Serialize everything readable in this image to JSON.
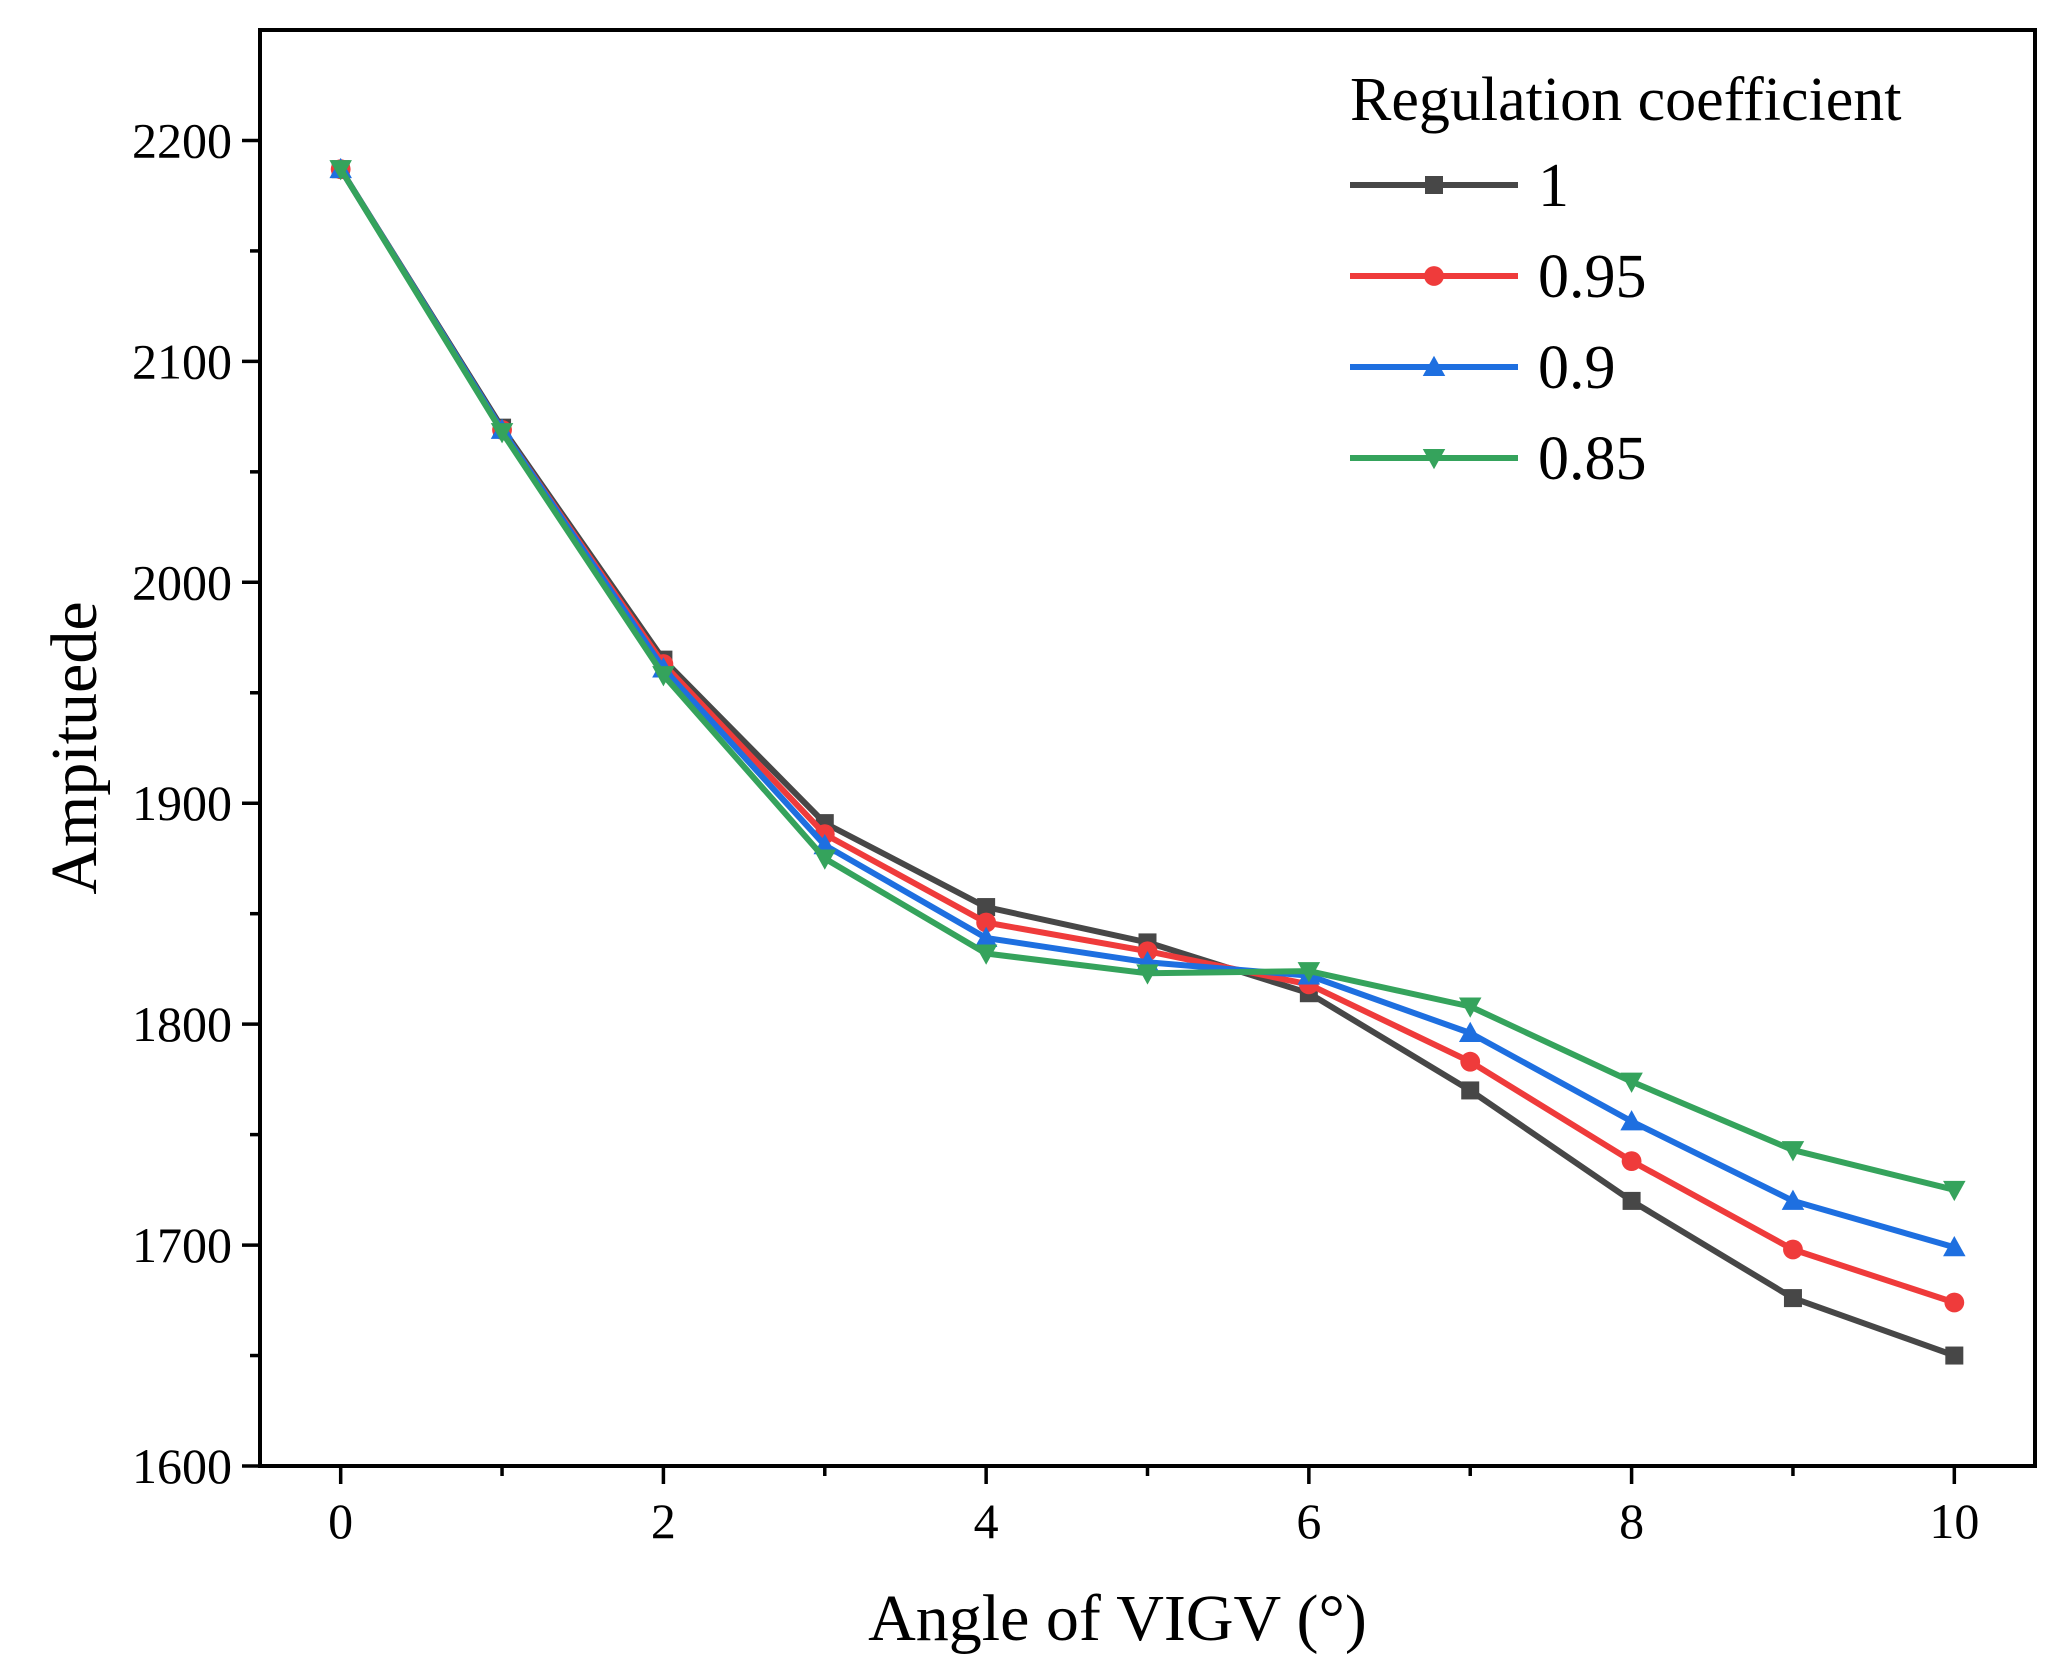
{
  "chart_data": {
    "type": "line",
    "title": "",
    "xlabel": "Angle of VIGV (°)",
    "ylabel": "Ampituede",
    "xlim": [
      -0.5,
      10.5
    ],
    "ylim": [
      1600,
      2250
    ],
    "xticks": [
      0,
      1,
      2,
      3,
      4,
      5,
      6,
      7,
      8,
      9,
      10
    ],
    "xtick_labels": [
      "0",
      "",
      "2",
      "",
      "4",
      "",
      "6",
      "",
      "8",
      "",
      "10"
    ],
    "yticks": [
      1600,
      1700,
      1800,
      1900,
      2000,
      2100,
      2200
    ],
    "ytick_labels": [
      "1600",
      "1700",
      "1800",
      "1900",
      "2000",
      "2100",
      "2200"
    ],
    "grid": false,
    "legend": {
      "title": "Regulation coefficient",
      "position": "top-right"
    },
    "x": [
      0,
      1,
      2,
      3,
      4,
      5,
      6,
      7,
      8,
      9,
      10
    ],
    "series": [
      {
        "name": "1",
        "color": "#474747",
        "marker": "square",
        "values": [
          2187,
          2070,
          1965,
          1891,
          1853,
          1837,
          1814,
          1770,
          1720,
          1676,
          1650
        ]
      },
      {
        "name": "0.95",
        "color": "#ef3b3b",
        "marker": "circle",
        "values": [
          2187,
          2069,
          1963,
          1886,
          1846,
          1833,
          1818,
          1783,
          1738,
          1698,
          1674
        ]
      },
      {
        "name": "0.9",
        "color": "#1e6fe0",
        "marker": "triangle-up",
        "values": [
          2187,
          2069,
          1961,
          1881,
          1839,
          1828,
          1822,
          1796,
          1756,
          1720,
          1699
        ]
      },
      {
        "name": "0.85",
        "color": "#35a35c",
        "marker": "triangle-down",
        "values": [
          2187,
          2068,
          1958,
          1875,
          1832,
          1823,
          1824,
          1808,
          1774,
          1743,
          1725
        ]
      }
    ]
  }
}
